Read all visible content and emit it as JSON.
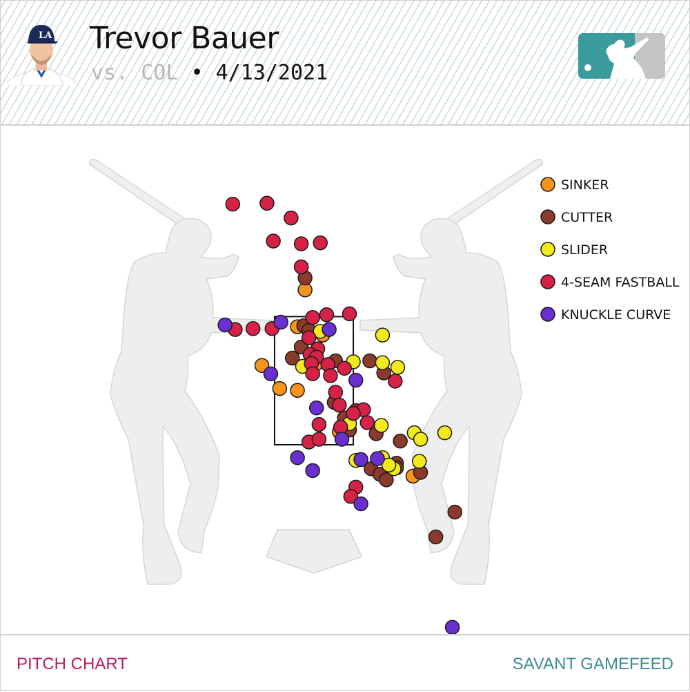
{
  "header": {
    "player_name": "Trevor Bauer",
    "opponent": "vs. COL",
    "separator": " • ",
    "date": "4/13/2021"
  },
  "footer": {
    "left_label": "PITCH CHART",
    "right_label": "SAVANT GAMEFEED"
  },
  "icons": {
    "avatar": "player-headshot",
    "logo": "mlb-logo"
  },
  "colors": {
    "SINKER": "#f7941d",
    "CUTTER": "#8b3a2b",
    "SLIDER": "#f2ea1f",
    "4-SEAM FASTBALL": "#d62246",
    "KNUCKLE CURVE": "#6a2fd0",
    "footer_left": "#c2185b",
    "footer_right": "#3c8d93",
    "logo_teal": "#3a9a9c"
  },
  "chart_data": {
    "type": "scatter",
    "xlim": [
      -2.72,
      2.72
    ],
    "ylim": [
      -0.55,
      5.0
    ],
    "strike_zone": {
      "x": [
        -0.31,
        0.31
      ],
      "y": [
        1.47,
        2.86
      ]
    },
    "legend": [
      "SINKER",
      "CUTTER",
      "SLIDER",
      "4-SEAM FASTBALL",
      "KNUCKLE CURVE"
    ],
    "legend_position": "top-right",
    "series": [
      {
        "name": "SINKER",
        "points": [
          [
            -0.07,
            3.15
          ],
          [
            -0.13,
            2.75
          ],
          [
            0.07,
            2.66
          ],
          [
            -0.41,
            2.33
          ],
          [
            -0.27,
            2.08
          ],
          [
            -0.13,
            2.06
          ],
          [
            0.01,
            2.34
          ],
          [
            0.2,
            1.61
          ],
          [
            0.78,
            1.13
          ]
        ]
      },
      {
        "name": "CUTTER",
        "points": [
          [
            -0.07,
            3.28
          ],
          [
            -0.08,
            2.76
          ],
          [
            -0.04,
            2.71
          ],
          [
            -0.17,
            2.41
          ],
          [
            -0.1,
            2.53
          ],
          [
            0.17,
            2.38
          ],
          [
            0.44,
            2.38
          ],
          [
            0.55,
            2.25
          ],
          [
            0.16,
            1.93
          ],
          [
            0.33,
            1.84
          ],
          [
            0.24,
            1.76
          ],
          [
            0.28,
            1.63
          ],
          [
            0.49,
            1.59
          ],
          [
            0.68,
            1.51
          ],
          [
            0.65,
            1.27
          ],
          [
            0.65,
            1.22
          ],
          [
            0.45,
            1.21
          ],
          [
            0.52,
            1.15
          ],
          [
            0.57,
            1.09
          ],
          [
            0.84,
            1.17
          ],
          [
            1.11,
            0.74
          ],
          [
            0.96,
            0.47
          ]
        ]
      },
      {
        "name": "SLIDER",
        "points": [
          [
            0.05,
            2.7
          ],
          [
            0.54,
            2.66
          ],
          [
            0.31,
            2.37
          ],
          [
            0.54,
            2.36
          ],
          [
            0.66,
            2.31
          ],
          [
            -0.09,
            2.32
          ],
          [
            0.28,
            1.7
          ],
          [
            0.53,
            1.68
          ],
          [
            0.79,
            1.6
          ],
          [
            0.84,
            1.53
          ],
          [
            1.03,
            1.6
          ],
          [
            0.33,
            1.3
          ],
          [
            0.54,
            1.33
          ],
          [
            0.63,
            1.21
          ],
          [
            0.59,
            1.25
          ],
          [
            0.83,
            1.29
          ]
        ]
      },
      {
        "name": "4-SEAM FASTBALL",
        "points": [
          [
            -0.64,
            4.08
          ],
          [
            -0.37,
            4.09
          ],
          [
            -0.18,
            3.93
          ],
          [
            -0.32,
            3.68
          ],
          [
            -0.1,
            3.65
          ],
          [
            0.05,
            3.66
          ],
          [
            -0.1,
            3.4
          ],
          [
            0.1,
            2.88
          ],
          [
            0.28,
            2.89
          ],
          [
            -0.33,
            2.73
          ],
          [
            -0.48,
            2.73
          ],
          [
            -0.62,
            2.72
          ],
          [
            -0.01,
            2.85
          ],
          [
            -0.04,
            2.63
          ],
          [
            0.03,
            2.51
          ],
          [
            -0.03,
            2.45
          ],
          [
            0.02,
            2.42
          ],
          [
            0.11,
            2.34
          ],
          [
            -0.02,
            2.35
          ],
          [
            0.24,
            2.3
          ],
          [
            0.13,
            2.22
          ],
          [
            -0.01,
            2.24
          ],
          [
            0.17,
            2.04
          ],
          [
            0.64,
            2.16
          ],
          [
            0.2,
            1.9
          ],
          [
            0.39,
            1.85
          ],
          [
            0.31,
            1.81
          ],
          [
            0.42,
            1.71
          ],
          [
            0.04,
            1.69
          ],
          [
            0.21,
            1.66
          ],
          [
            -0.04,
            1.5
          ],
          [
            0.04,
            1.53
          ],
          [
            0.33,
            1.01
          ],
          [
            0.29,
            0.91
          ]
        ]
      },
      {
        "name": "KNUCKLE CURVE",
        "points": [
          [
            -0.7,
            2.77
          ],
          [
            -0.26,
            2.8
          ],
          [
            0.12,
            2.72
          ],
          [
            -0.34,
            2.24
          ],
          [
            0.33,
            2.17
          ],
          [
            0.02,
            1.87
          ],
          [
            0.22,
            1.53
          ],
          [
            -0.13,
            1.33
          ],
          [
            -0.01,
            1.19
          ],
          [
            0.5,
            1.32
          ],
          [
            0.37,
            1.31
          ],
          [
            0.37,
            0.83
          ],
          [
            1.09,
            -0.51
          ]
        ]
      }
    ]
  }
}
